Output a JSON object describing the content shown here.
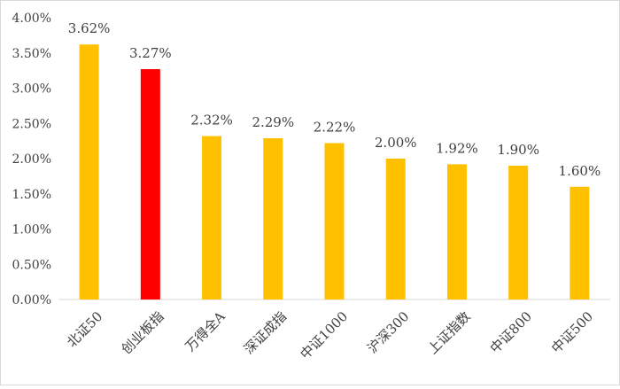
{
  "chart_data": {
    "type": "bar",
    "title": "",
    "xlabel": "",
    "ylabel": "",
    "categories": [
      "北证50",
      "创业板指",
      "万得全A",
      "深证成指",
      "中证1000",
      "沪深300",
      "上证指数",
      "中证800",
      "中证500"
    ],
    "values": [
      3.62,
      3.27,
      2.32,
      2.29,
      2.22,
      2.0,
      1.92,
      1.9,
      1.6
    ],
    "data_labels": [
      "3.62%",
      "3.27%",
      "2.32%",
      "2.29%",
      "2.22%",
      "2.00%",
      "1.92%",
      "1.90%",
      "1.60%"
    ],
    "highlight_index": 1,
    "ylim": [
      0,
      4
    ],
    "y_ticks": [
      "0.00%",
      "0.50%",
      "1.00%",
      "1.50%",
      "2.00%",
      "2.50%",
      "3.00%",
      "3.50%",
      "4.00%"
    ],
    "y_tick_values": [
      0,
      0.5,
      1,
      1.5,
      2,
      2.5,
      3,
      3.5,
      4
    ],
    "grid": false,
    "legend": "none",
    "colors": {
      "bar": "#FFC000",
      "highlight": "#FF0000",
      "axis": "#d9d9d9",
      "text": "#404040"
    }
  }
}
